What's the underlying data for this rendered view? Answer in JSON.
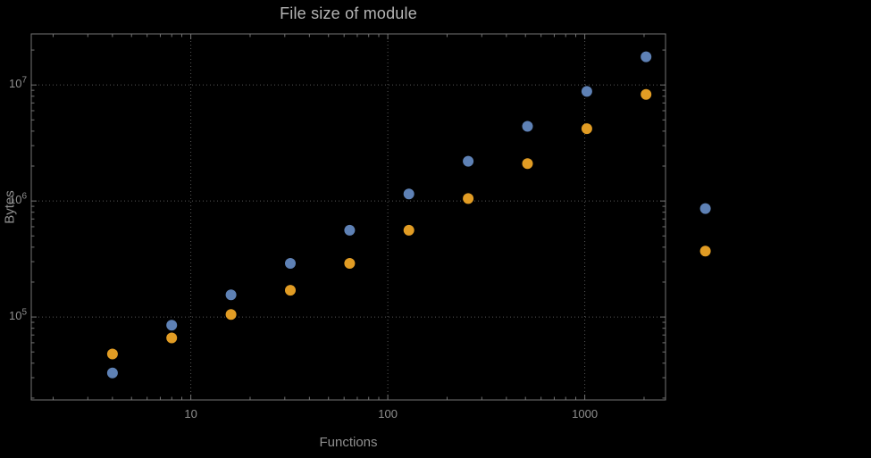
{
  "colors": {
    "background": "#000000",
    "frame": "#737373",
    "grid": "#565656",
    "tick_text": "#8f8f8f",
    "title_text": "#b5b5b5",
    "label_text": "#8f8f8f",
    "series_blue": "#5E81B5",
    "series_orange": "#E19C24"
  },
  "chart_data": {
    "type": "scatter",
    "title": "File size of module",
    "xlabel": "Functions",
    "ylabel": "Bytes",
    "x_scale": "log",
    "y_scale": "log",
    "grid": "dotted",
    "legend": "none",
    "x_range_log": [
      0.19,
      3.41
    ],
    "y_range_log": [
      4.285,
      7.44
    ],
    "x_ticks": [
      {
        "value": 10,
        "label": "10"
      },
      {
        "value": 100,
        "label": "100"
      },
      {
        "value": 1000,
        "label": "1000"
      }
    ],
    "y_ticks": [
      {
        "value": 100000,
        "base": "10",
        "exp": "5"
      },
      {
        "value": 1000000,
        "base": "10",
        "exp": "6"
      },
      {
        "value": 10000000,
        "base": "10",
        "exp": "7"
      }
    ],
    "series": [
      {
        "name": "blue",
        "color": "#5E81B5",
        "points": [
          [
            4,
            33000
          ],
          [
            8,
            85000
          ],
          [
            16,
            155000
          ],
          [
            32,
            290000
          ],
          [
            64,
            560000
          ],
          [
            128,
            1150000
          ],
          [
            256,
            2200000
          ],
          [
            512,
            4400000
          ],
          [
            1024,
            8800000
          ],
          [
            2048,
            17500000
          ],
          [
            4096,
            860000
          ]
        ]
      },
      {
        "name": "orange",
        "color": "#E19C24",
        "points": [
          [
            4,
            48000
          ],
          [
            8,
            66000
          ],
          [
            16,
            105000
          ],
          [
            32,
            170000
          ],
          [
            64,
            290000
          ],
          [
            128,
            560000
          ],
          [
            256,
            1050000
          ],
          [
            512,
            2100000
          ],
          [
            1024,
            4200000
          ],
          [
            2048,
            8300000
          ],
          [
            4096,
            370000
          ]
        ]
      }
    ]
  }
}
